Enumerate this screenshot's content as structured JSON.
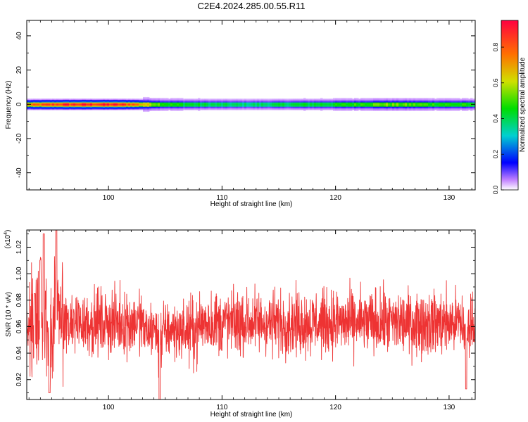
{
  "page": {
    "title": "C2E4.2024.285.00.55.R11"
  },
  "chart_data": [
    {
      "type": "heatmap",
      "xlabel": "Height of straight line (km)",
      "ylabel": "Frequency (Hz)",
      "xlim": [
        92.8,
        132.3
      ],
      "ylim": [
        -50,
        49
      ],
      "x_ticks": [
        100,
        110,
        120,
        130
      ],
      "y_ticks": [
        -40,
        -20,
        0,
        20,
        40
      ],
      "band_center_hz": 0,
      "band_halfwidth_hz": 1.5,
      "intensity_by_height": [
        {
          "x": 93.0,
          "v": 0.75
        },
        {
          "x": 94.0,
          "v": 0.82
        },
        {
          "x": 96.0,
          "v": 0.9
        },
        {
          "x": 100.0,
          "v": 0.92
        },
        {
          "x": 102.0,
          "v": 0.85
        },
        {
          "x": 103.5,
          "v": 0.62
        },
        {
          "x": 105.0,
          "v": 0.48
        },
        {
          "x": 108.0,
          "v": 0.42
        },
        {
          "x": 112.0,
          "v": 0.38
        },
        {
          "x": 116.0,
          "v": 0.42
        },
        {
          "x": 120.0,
          "v": 0.45
        },
        {
          "x": 124.0,
          "v": 0.55
        },
        {
          "x": 128.0,
          "v": 0.5
        },
        {
          "x": 132.3,
          "v": 0.45
        }
      ],
      "colorbar": {
        "label": "Normalized spectral amplitude",
        "range": [
          0,
          0.95
        ],
        "ticks": [
          0.0,
          0.2,
          0.4,
          0.6,
          0.8
        ]
      },
      "grid": false
    },
    {
      "type": "line",
      "xlabel": "Height of straight line (km)",
      "ylabel": "SNR (10 * v/v)",
      "y_multiplier_label": "(x10",
      "y_multiplier_exponent": "4",
      "y_multiplier_close": ")",
      "xlim": [
        92.8,
        132.3
      ],
      "ylim": [
        0.905,
        1.033
      ],
      "x_ticks": [
        100,
        110,
        120,
        130
      ],
      "y_ticks": [
        0.92,
        0.94,
        0.96,
        0.98,
        1.0,
        1.02
      ],
      "series": [
        {
          "color": "#ee3333",
          "points_per_km": 52,
          "mean": 0.963,
          "spread": 0.017,
          "features": [
            {
              "x": 93.5,
              "y": 0.985
            },
            {
              "x": 94.0,
              "y": 1.01
            },
            {
              "x": 94.3,
              "y": 1.03
            },
            {
              "x": 94.8,
              "y": 0.91
            },
            {
              "x": 95.4,
              "y": 1.033
            },
            {
              "x": 104.5,
              "y": 0.905
            },
            {
              "x": 131.5,
              "y": 0.913
            }
          ]
        }
      ],
      "grid": false
    }
  ]
}
